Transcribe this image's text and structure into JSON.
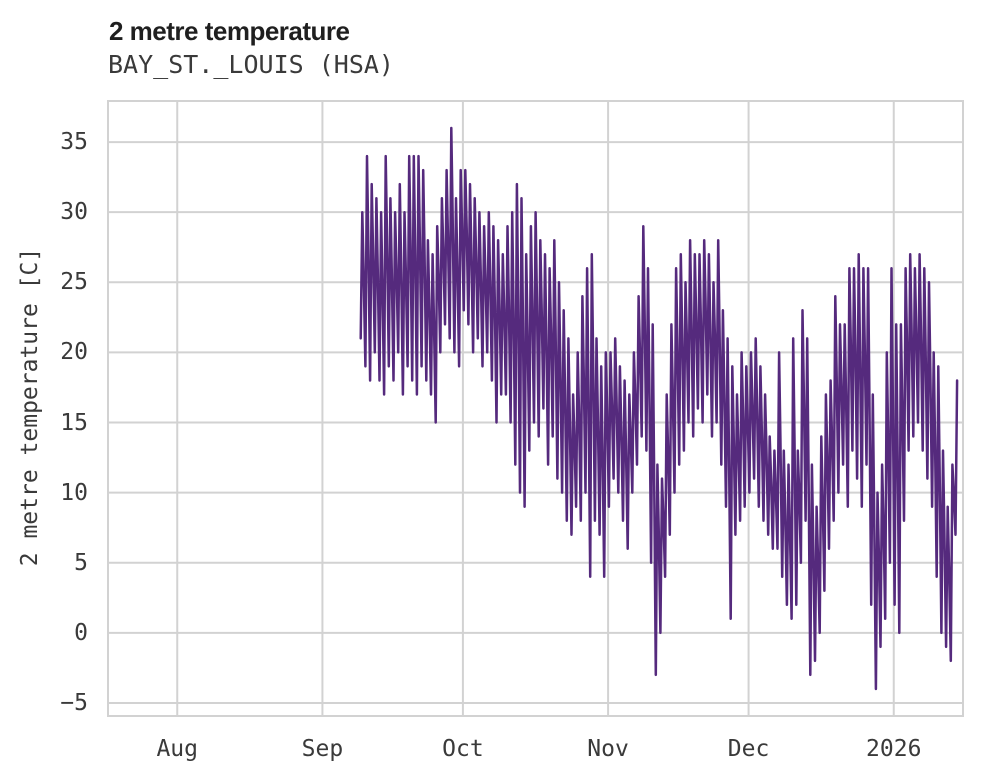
{
  "chart_data": {
    "type": "line",
    "title": "2 metre temperature",
    "subtitle": "BAY_ST._LOUIS (HSA)",
    "ylabel": "2 metre temperature [C]",
    "y_ticks": [
      -5,
      0,
      5,
      10,
      15,
      20,
      25,
      30,
      35
    ],
    "y_tick_labels": [
      "−5",
      "0",
      "5",
      "10",
      "15",
      "20",
      "25",
      "30",
      "35"
    ],
    "y_axis_range": [
      -6,
      38
    ],
    "x_tick_labels": [
      "Aug",
      "Sep",
      "Oct",
      "Nov",
      "Dec",
      "2026"
    ],
    "x_tick_days": [
      15,
      46,
      76,
      107,
      137,
      168
    ],
    "x_axis_total_days": 183,
    "grid": true,
    "grid_color": "#d2d2d2",
    "line_color": "#552a7d",
    "background": "#ffffff",
    "legend": "none",
    "series": [
      {
        "name": "2 metre temperature",
        "start_day": 54,
        "points_per_day": "diurnal min/max pairs",
        "daily_min_max": [
          [
            21,
            30
          ],
          [
            19,
            34
          ],
          [
            18,
            32
          ],
          [
            20,
            31
          ],
          [
            18,
            30
          ],
          [
            17,
            34
          ],
          [
            19,
            31
          ],
          [
            18,
            30
          ],
          [
            20,
            32
          ],
          [
            17,
            30
          ],
          [
            19,
            34
          ],
          [
            18,
            34
          ],
          [
            17,
            34
          ],
          [
            19,
            33
          ],
          [
            18,
            28
          ],
          [
            17,
            27
          ],
          [
            15,
            29
          ],
          [
            20,
            31
          ],
          [
            22,
            33
          ],
          [
            21,
            36
          ],
          [
            20,
            31
          ],
          [
            19,
            33
          ],
          [
            23,
            33
          ],
          [
            22,
            32
          ],
          [
            20,
            31
          ],
          [
            21,
            30
          ],
          [
            19,
            29
          ],
          [
            20,
            30
          ],
          [
            18,
            29
          ],
          [
            15,
            28
          ],
          [
            17,
            27
          ],
          [
            17,
            29
          ],
          [
            15,
            30
          ],
          [
            12,
            32
          ],
          [
            10,
            31
          ],
          [
            9,
            27
          ],
          [
            13,
            29
          ],
          [
            15,
            30
          ],
          [
            14,
            28
          ],
          [
            16,
            27
          ],
          [
            12,
            26
          ],
          [
            14,
            28
          ],
          [
            11,
            25
          ],
          [
            10,
            23
          ],
          [
            8,
            21
          ],
          [
            7,
            17
          ],
          [
            9,
            20
          ],
          [
            8,
            24
          ],
          [
            10,
            26
          ],
          [
            4,
            27
          ],
          [
            8,
            21
          ],
          [
            7,
            19
          ],
          [
            4,
            20
          ],
          [
            9,
            20
          ],
          [
            11,
            21
          ],
          [
            10,
            19
          ],
          [
            8,
            18
          ],
          [
            6,
            17
          ],
          [
            10,
            20
          ],
          [
            12,
            24
          ],
          [
            14,
            29
          ],
          [
            13,
            26
          ],
          [
            5,
            22
          ],
          [
            -3,
            12
          ],
          [
            0,
            11
          ],
          [
            4,
            17
          ],
          [
            7,
            22
          ],
          [
            10,
            26
          ],
          [
            12,
            27
          ],
          [
            13,
            25
          ],
          [
            15,
            28
          ],
          [
            14,
            27
          ],
          [
            16,
            27
          ],
          [
            15,
            28
          ],
          [
            17,
            27
          ],
          [
            14,
            25
          ],
          [
            15,
            28
          ],
          [
            12,
            23
          ],
          [
            9,
            21
          ],
          [
            1,
            19
          ],
          [
            7,
            17
          ],
          [
            8,
            20
          ],
          [
            9,
            19
          ],
          [
            10,
            20
          ],
          [
            11,
            21
          ],
          [
            9,
            19
          ],
          [
            8,
            17
          ],
          [
            7,
            14
          ],
          [
            6,
            13
          ],
          [
            6,
            20
          ],
          [
            4,
            13
          ],
          [
            2,
            12
          ],
          [
            1,
            21
          ],
          [
            2,
            13
          ],
          [
            5,
            23
          ],
          [
            8,
            21
          ],
          [
            -3,
            12
          ],
          [
            -2,
            9
          ],
          [
            0,
            14
          ],
          [
            3,
            17
          ],
          [
            6,
            18
          ],
          [
            8,
            24
          ],
          [
            10,
            22
          ],
          [
            12,
            22
          ],
          [
            9,
            26
          ],
          [
            13,
            26
          ],
          [
            11,
            27
          ],
          [
            9,
            26
          ],
          [
            12,
            26
          ],
          [
            2,
            17
          ],
          [
            -4,
            10
          ],
          [
            -1,
            12
          ],
          [
            1,
            20
          ],
          [
            5,
            26
          ],
          [
            2,
            22
          ],
          [
            0,
            22
          ],
          [
            8,
            26
          ],
          [
            13,
            27
          ],
          [
            14,
            26
          ],
          [
            15,
            27
          ],
          [
            13,
            26
          ],
          [
            11,
            25
          ],
          [
            9,
            20
          ],
          [
            4,
            19
          ],
          [
            0,
            13
          ],
          [
            -1,
            9
          ],
          [
            -2,
            12
          ],
          [
            7,
            18
          ]
        ]
      }
    ]
  }
}
